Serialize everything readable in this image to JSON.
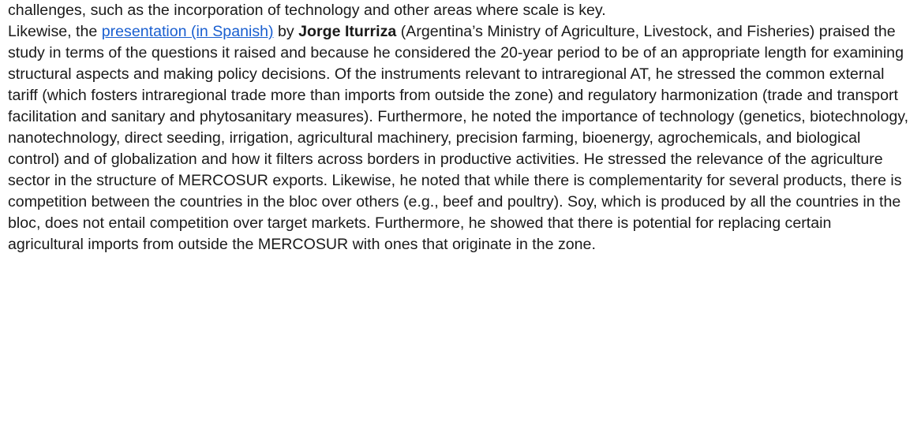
{
  "paragraphs": [
    {
      "text": "challenges, such as the incorporation of technology and other areas where scale is key."
    },
    {
      "before": "Likewise, the ",
      "link": "presentation (in Spanish)",
      "middle": " by ",
      "name": "Jorge Iturriza",
      "after": " (Argentina’s Ministry of Agriculture, Livestock, and Fisheries) praised the study in terms of the questions it raised and because he considered the 20-year period to be of an appropriate length for examining structural aspects and making policy decisions. Of the instruments relevant to intraregional AT, he stressed the common external tariff (which fosters intraregional trade more than imports from outside the zone) and regulatory harmonization (trade and transport facilitation and sanitary and phytosanitary measures). Furthermore, he noted the importance of technology (genetics, biotechnology, nanotechnology, direct seeding, irrigation, agricultural machinery, precision farming, bioenergy, agrochemicals, and biological control) and of globalization and how it filters across borders in productive activities. He stressed the relevance of the agriculture sector in the structure of MERCOSUR exports. Likewise, he noted that while there is complementarity for several products, there is competition between the countries in the bloc over others (e.g., beef and poultry). Soy, which is produced by all the countries in the bloc, does not entail competition over target markets. Furthermore, he showed that there is potential for replacing certain agricultural imports from outside the MERCOSUR with ones that originate in the zone."
    }
  ]
}
